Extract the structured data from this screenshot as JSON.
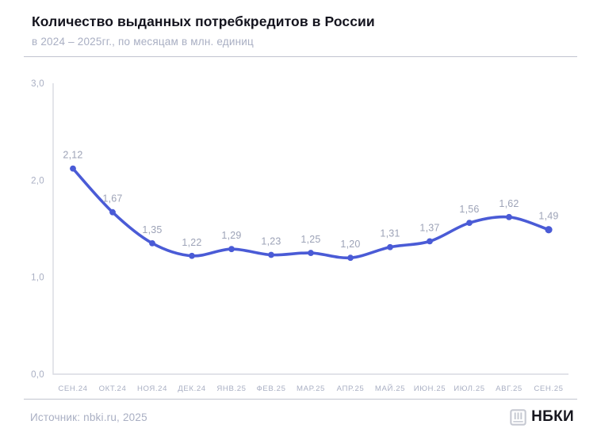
{
  "header": {
    "title": "Количество выданных потребкредитов в России",
    "subtitle": "в 2024 – 2025гг., по месяцам в млн. единиц"
  },
  "footer": {
    "source": "Источник: nbki.ru, 2025",
    "brand": "НБКИ",
    "logo_icon": "nbki-abacus-icon"
  },
  "colors": {
    "line": "#4A5BD6",
    "point": "#4A5BD6",
    "point_label": "#9DA3B7",
    "axis": "#D8DAE2",
    "tick_label": "#A9AFC3",
    "title": "#14141E",
    "subtitle": "#A9AFC3",
    "divider": "#C1C4CF",
    "brand_text": "#17171F",
    "logo": "#C6C9D2",
    "background": "#FFFFFF"
  },
  "chart_data": {
    "type": "line",
    "title": "Количество выданных потребкредитов в России",
    "subtitle": "в 2024 – 2025гг., по месяцам в млн. единиц",
    "categories": [
      "СЕН.24",
      "ОКТ.24",
      "НОЯ.24",
      "ДЕК.24",
      "ЯНВ.25",
      "ФЕВ.25",
      "МАР.25",
      "АПР.25",
      "МАЙ.25",
      "ИЮН.25",
      "ИЮЛ.25",
      "АВГ.25",
      "СЕН.25"
    ],
    "values": [
      2.12,
      1.67,
      1.35,
      1.22,
      1.29,
      1.23,
      1.25,
      1.2,
      1.31,
      1.37,
      1.56,
      1.62,
      1.49
    ],
    "point_labels": [
      "2,12",
      "1,67",
      "1,35",
      "1,22",
      "1,29",
      "1,23",
      "1,25",
      "1,20",
      "1,31",
      "1,37",
      "1,56",
      "1,62",
      "1,49"
    ],
    "yticks": [
      {
        "value": 3,
        "label": "3,0"
      },
      {
        "value": 2,
        "label": "2,0"
      },
      {
        "value": 1,
        "label": "1,0"
      },
      {
        "value": 0,
        "label": "0,0"
      }
    ],
    "ylim": [
      0,
      3
    ],
    "grid": false,
    "legend": false,
    "smooth": true
  }
}
